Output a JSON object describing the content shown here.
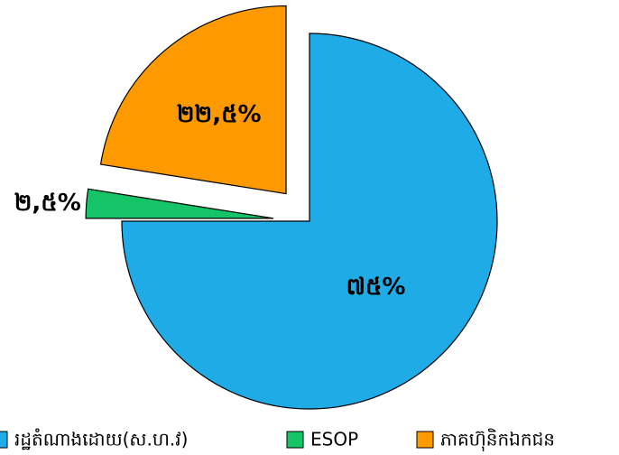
{
  "chart_data": {
    "type": "pie",
    "categories": [
      "រដ្ឋតំណាងដោយ(ស.ហ.វ)",
      "ESOP",
      "ភាគហ៊ុនិកឯកជន"
    ],
    "values": [
      75,
      2.5,
      22.5
    ],
    "value_labels": [
      "៧៥%",
      "២,៥%",
      "២២,៥%"
    ],
    "colors": [
      "#1fabe6",
      "#14c466",
      "#ff9900"
    ],
    "legend": "bottom"
  }
}
